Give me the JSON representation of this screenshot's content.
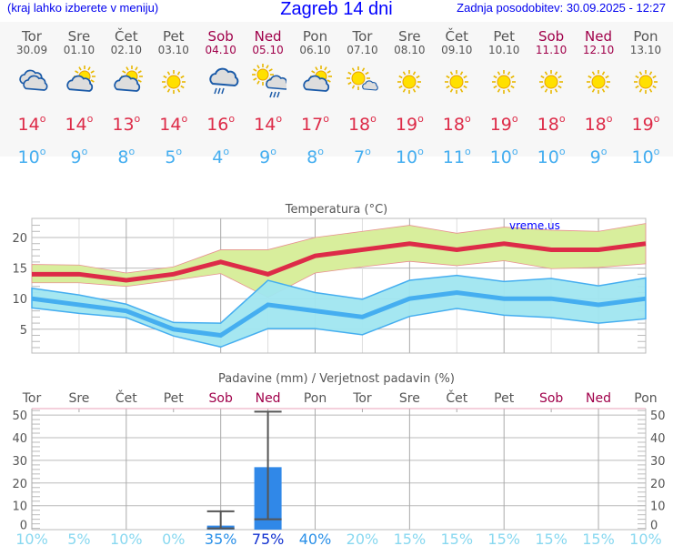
{
  "header": {
    "left": "(kraj lahko izberete v meniju)",
    "title": "Zagreb 14 dni",
    "right": "Zadnja posodobitev: 30.09.2025 - 12:27"
  },
  "days": [
    {
      "name": "Tor",
      "date": "30.09",
      "weekend": false,
      "icon": "cloudy-icon",
      "high": "14",
      "low": "10"
    },
    {
      "name": "Sre",
      "date": "01.10",
      "weekend": false,
      "icon": "partly-cloudy-icon",
      "high": "14",
      "low": "9"
    },
    {
      "name": "Čet",
      "date": "02.10",
      "weekend": false,
      "icon": "partly-cloudy-icon",
      "high": "13",
      "low": "8"
    },
    {
      "name": "Pet",
      "date": "03.10",
      "weekend": false,
      "icon": "sun-icon",
      "high": "14",
      "low": "5"
    },
    {
      "name": "Sob",
      "date": "04.10",
      "weekend": true,
      "icon": "cloud-rain-icon",
      "high": "16",
      "low": "4"
    },
    {
      "name": "Ned",
      "date": "05.10",
      "weekend": true,
      "icon": "sun-cloud-rain-icon",
      "high": "14",
      "low": "9"
    },
    {
      "name": "Pon",
      "date": "06.10",
      "weekend": false,
      "icon": "partly-cloudy-icon",
      "high": "17",
      "low": "8"
    },
    {
      "name": "Tor",
      "date": "07.10",
      "weekend": false,
      "icon": "mostly-sunny-icon",
      "high": "18",
      "low": "7"
    },
    {
      "name": "Sre",
      "date": "08.10",
      "weekend": false,
      "icon": "sun-icon",
      "high": "19",
      "low": "10"
    },
    {
      "name": "Čet",
      "date": "09.10",
      "weekend": false,
      "icon": "sun-icon",
      "high": "18",
      "low": "11"
    },
    {
      "name": "Pet",
      "date": "10.10",
      "weekend": false,
      "icon": "sun-icon",
      "high": "19",
      "low": "10"
    },
    {
      "name": "Sob",
      "date": "11.10",
      "weekend": true,
      "icon": "sun-icon",
      "high": "18",
      "low": "10"
    },
    {
      "name": "Ned",
      "date": "12.10",
      "weekend": true,
      "icon": "sun-icon",
      "high": "18",
      "low": "9"
    },
    {
      "name": "Pon",
      "date": "13.10",
      "weekend": false,
      "icon": "sun-icon",
      "high": "19",
      "low": "10"
    }
  ],
  "degree": "o",
  "chart_data": [
    {
      "type": "area",
      "title": "Temperatura (°C)",
      "title_parts": [
        "Temperatura (",
        "o",
        "C)"
      ],
      "watermark": "vreme.us",
      "ylim": [
        1,
        23
      ],
      "yticks": [
        5,
        10,
        15,
        20
      ],
      "grid": true,
      "series": [
        {
          "role": "high",
          "values": [
            14,
            14,
            13,
            14,
            16,
            14,
            17,
            18,
            19,
            18,
            19,
            18,
            18,
            19
          ],
          "band_upper": [
            15.6,
            15.5,
            14.2,
            15.2,
            18,
            18,
            20,
            21,
            22,
            20.7,
            21.7,
            21.2,
            21,
            22.3
          ],
          "band_lower": [
            12.6,
            12.6,
            12,
            13,
            14.1,
            10.2,
            14.2,
            15.2,
            16.1,
            15.4,
            16.2,
            14.9,
            15.1,
            15.7
          ],
          "color": "#dd2b48",
          "band_color": "#d8ee9c"
        },
        {
          "role": "low",
          "values": [
            10,
            9,
            8,
            5,
            4,
            9,
            8,
            7,
            10,
            11,
            10,
            10,
            9,
            10
          ],
          "band_upper": [
            11.7,
            10.6,
            9.1,
            6.1,
            6,
            13,
            11,
            9.9,
            13,
            13.8,
            12.8,
            13.3,
            12.1,
            13.4
          ],
          "band_lower": [
            8.5,
            7.6,
            6.9,
            3.9,
            2.1,
            5.1,
            5.1,
            4.1,
            7.1,
            8.4,
            7.3,
            6.9,
            6,
            6.7
          ],
          "color": "#45aef0",
          "band_color": "#a0e6f0"
        }
      ]
    },
    {
      "type": "bar",
      "title": "Padavine (mm) / Verjetnost padavin (%)",
      "ylim": [
        0,
        52.5
      ],
      "yticks": [
        0,
        10,
        20,
        30,
        40,
        50
      ],
      "grid": true,
      "categories": [
        "Tor",
        "Sre",
        "Čet",
        "Pet",
        "Sob",
        "Ned",
        "Pon",
        "Tor",
        "Sre",
        "Čet",
        "Pet",
        "Sob",
        "Ned",
        "Pon"
      ],
      "weekend": [
        false,
        false,
        false,
        false,
        true,
        true,
        false,
        false,
        false,
        false,
        false,
        true,
        true,
        false
      ],
      "values": [
        0,
        0,
        0,
        0,
        1.2,
        27,
        0,
        0,
        0,
        0,
        0,
        0,
        0,
        0
      ],
      "range": [
        null,
        null,
        null,
        null,
        [
          0,
          7.5
        ],
        [
          4,
          51.5
        ],
        null,
        null,
        null,
        null,
        null,
        null,
        null,
        null
      ],
      "probability": [
        "10%",
        "5%",
        "10%",
        "0%",
        "35%",
        "75%",
        "40%",
        "20%",
        "15%",
        "15%",
        "15%",
        "15%",
        "15%",
        "10%"
      ],
      "bar_color": "#3088e8"
    }
  ]
}
